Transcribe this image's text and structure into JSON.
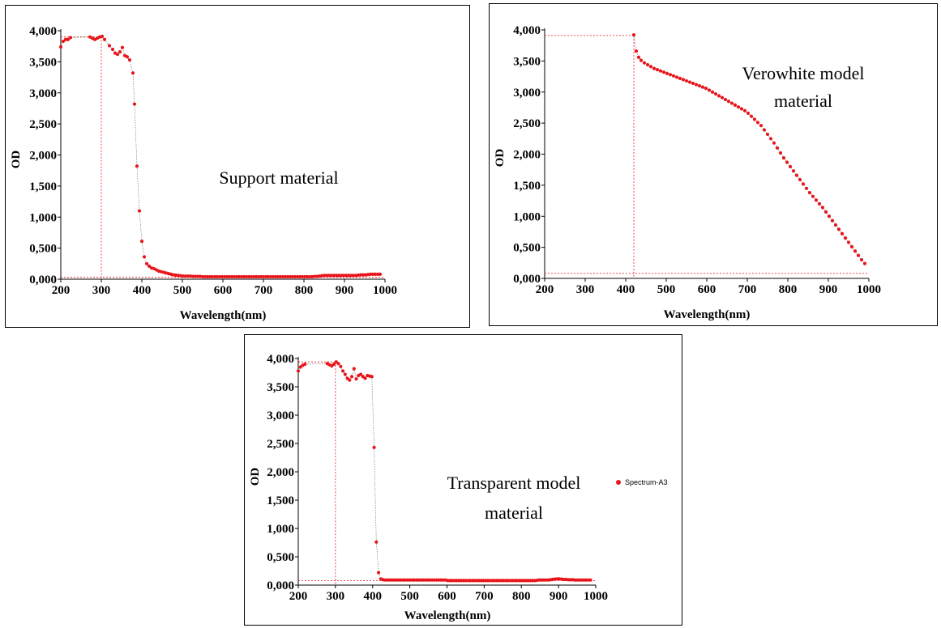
{
  "chart_data": [
    {
      "type": "scatter",
      "xlabel": "Wavelength(nm)",
      "ylabel": "OD",
      "xlim": [
        200,
        1000
      ],
      "ylim": [
        0,
        4000
      ],
      "xticks": [
        "200",
        "300",
        "400",
        "500",
        "600",
        "700",
        "800",
        "900",
        "1000"
      ],
      "yticks": [
        "0,000",
        "0,500",
        "1,000",
        "1,500",
        "2,000",
        "2,500",
        "3,000",
        "3,500",
        "4,000"
      ],
      "annotation": [
        "Support material"
      ],
      "marker_color": "#e8151b",
      "guide_color": "#e8151b",
      "cursor": {
        "x": 300,
        "y": 30
      },
      "top_line": {
        "x_start": 200,
        "x_end": 300,
        "y": 3900
      },
      "series": [
        {
          "x": [
            200,
            206,
            212,
            218,
            224,
            272,
            278,
            284,
            290,
            296,
            302,
            308,
            320,
            328,
            334,
            340,
            346,
            352,
            358,
            364,
            370,
            378,
            382,
            388,
            394,
            400,
            406,
            412,
            418,
            424,
            430,
            436,
            442,
            448,
            454,
            460,
            466,
            472,
            478,
            484,
            490,
            496,
            502,
            508,
            514,
            520,
            526,
            532,
            538,
            544,
            550,
            556,
            562,
            568,
            574,
            580,
            586,
            592,
            598,
            604,
            610,
            616,
            622,
            628,
            634,
            640,
            646,
            652,
            658,
            664,
            670,
            676,
            682,
            688,
            694,
            700,
            706,
            712,
            718,
            724,
            730,
            736,
            742,
            748,
            754,
            760,
            766,
            772,
            778,
            784,
            790,
            796,
            802,
            808,
            814,
            820,
            826,
            832,
            838,
            844,
            850,
            856,
            862,
            868,
            874,
            880,
            886,
            892,
            898,
            904,
            910,
            916,
            922,
            928,
            934,
            940,
            946,
            952,
            958,
            964,
            970,
            976,
            982,
            988
          ],
          "y": [
            3740,
            3830,
            3860,
            3860,
            3890,
            3900,
            3880,
            3860,
            3880,
            3900,
            3910,
            3860,
            3760,
            3700,
            3640,
            3620,
            3660,
            3730,
            3600,
            3580,
            3530,
            3320,
            2820,
            1820,
            1100,
            610,
            360,
            250,
            210,
            180,
            170,
            150,
            130,
            120,
            110,
            100,
            90,
            80,
            70,
            65,
            60,
            55,
            50,
            50,
            50,
            50,
            45,
            45,
            45,
            45,
            40,
            40,
            40,
            40,
            40,
            40,
            40,
            40,
            40,
            40,
            40,
            40,
            40,
            40,
            40,
            40,
            40,
            40,
            40,
            40,
            40,
            40,
            40,
            40,
            40,
            40,
            40,
            40,
            40,
            40,
            40,
            40,
            40,
            40,
            40,
            40,
            40,
            40,
            40,
            40,
            40,
            40,
            40,
            40,
            40,
            40,
            45,
            45,
            50,
            55,
            60,
            60,
            60,
            60,
            60,
            60,
            60,
            60,
            60,
            60,
            60,
            60,
            60,
            60,
            65,
            70,
            70,
            70,
            75,
            80,
            80,
            80,
            80,
            80
          ],
          "note": ""
        }
      ]
    },
    {
      "type": "scatter",
      "xlabel": "Wavelength(nm)",
      "ylabel": "OD",
      "xlim": [
        200,
        1000
      ],
      "ylim": [
        0,
        4000
      ],
      "xticks": [
        "200",
        "300",
        "400",
        "500",
        "600",
        "700",
        "800",
        "900",
        "1000"
      ],
      "yticks": [
        "0,000",
        "0,500",
        "1,000",
        "1,500",
        "2,000",
        "2,500",
        "3,000",
        "3,500",
        "4,000"
      ],
      "annotation": [
        "Verowhite model",
        "material"
      ],
      "marker_color": "#e8151b",
      "guide_color": "#e8151b",
      "cursor": {
        "x": 420,
        "y": 80
      },
      "top_line": {
        "x_start": 200,
        "x_end": 420,
        "y": 3910
      },
      "series": [
        {
          "x": [
            420,
            426,
            432,
            438,
            446,
            454,
            462,
            470,
            478,
            486,
            494,
            502,
            510,
            518,
            526,
            534,
            542,
            550,
            558,
            566,
            574,
            582,
            590,
            598,
            606,
            614,
            622,
            630,
            638,
            646,
            654,
            662,
            670,
            678,
            686,
            694,
            702,
            710,
            718,
            726,
            734,
            742,
            750,
            758,
            766,
            774,
            782,
            790,
            798,
            806,
            814,
            822,
            830,
            838,
            846,
            854,
            862,
            870,
            878,
            886,
            894,
            902,
            910,
            918,
            926,
            934,
            942,
            950,
            958,
            966,
            974,
            982,
            990
          ],
          "y": [
            3920,
            3660,
            3560,
            3510,
            3470,
            3440,
            3410,
            3380,
            3360,
            3340,
            3320,
            3300,
            3280,
            3260,
            3240,
            3220,
            3200,
            3180,
            3160,
            3140,
            3120,
            3100,
            3080,
            3060,
            3030,
            3000,
            2970,
            2940,
            2910,
            2880,
            2850,
            2820,
            2790,
            2760,
            2730,
            2700,
            2660,
            2610,
            2560,
            2510,
            2460,
            2390,
            2320,
            2250,
            2180,
            2100,
            2020,
            1940,
            1870,
            1800,
            1730,
            1660,
            1590,
            1520,
            1450,
            1380,
            1320,
            1260,
            1200,
            1140,
            1070,
            1000,
            930,
            860,
            790,
            720,
            650,
            580,
            510,
            440,
            370,
            300,
            240
          ],
          "note": ""
        }
      ]
    },
    {
      "type": "scatter",
      "xlabel": "Wavelength(nm)",
      "ylabel": "OD",
      "xlim": [
        200,
        1000
      ],
      "ylim": [
        0,
        4000
      ],
      "xticks": [
        "200",
        "300",
        "400",
        "500",
        "600",
        "700",
        "800",
        "900",
        "1000"
      ],
      "yticks": [
        "0,000",
        "0,500",
        "1,000",
        "1,500",
        "2,000",
        "2,500",
        "3,000",
        "3,500",
        "4,000"
      ],
      "annotation": [
        "Transparent model",
        "material"
      ],
      "marker_color": "#e8151b",
      "guide_color": "#e8151b",
      "cursor": {
        "x": 300,
        "y": 80
      },
      "top_line": {
        "x_start": 200,
        "x_end": 300,
        "y": 3940
      },
      "legend": {
        "label": "Spectrum-A3",
        "placement": "right"
      },
      "series": [
        {
          "name": "Spectrum-A3",
          "x": [
            200,
            206,
            212,
            218,
            278,
            284,
            290,
            296,
            302,
            308,
            314,
            320,
            326,
            332,
            338,
            344,
            350,
            356,
            362,
            368,
            374,
            380,
            386,
            392,
            398,
            404,
            410,
            416,
            422,
            428,
            434,
            440,
            446,
            452,
            458,
            464,
            470,
            476,
            482,
            488,
            494,
            500,
            506,
            512,
            518,
            524,
            530,
            536,
            542,
            548,
            554,
            560,
            566,
            572,
            578,
            584,
            590,
            596,
            602,
            608,
            614,
            620,
            626,
            632,
            638,
            644,
            650,
            656,
            662,
            668,
            674,
            680,
            686,
            692,
            698,
            704,
            710,
            716,
            722,
            728,
            734,
            740,
            746,
            752,
            758,
            764,
            770,
            776,
            782,
            788,
            794,
            800,
            806,
            812,
            818,
            824,
            830,
            836,
            842,
            848,
            854,
            860,
            866,
            872,
            878,
            884,
            890,
            896,
            902,
            908,
            914,
            920,
            926,
            932,
            938,
            944,
            950,
            956,
            962,
            968,
            974,
            980,
            986
          ],
          "y": [
            3780,
            3850,
            3880,
            3900,
            3910,
            3890,
            3870,
            3900,
            3940,
            3910,
            3860,
            3780,
            3720,
            3650,
            3620,
            3680,
            3820,
            3640,
            3700,
            3720,
            3680,
            3650,
            3700,
            3690,
            3680,
            2430,
            760,
            220,
            110,
            95,
            90,
            90,
            90,
            90,
            90,
            90,
            90,
            90,
            90,
            90,
            90,
            90,
            90,
            90,
            90,
            90,
            90,
            90,
            90,
            90,
            90,
            90,
            90,
            90,
            90,
            90,
            90,
            90,
            80,
            80,
            80,
            80,
            80,
            80,
            80,
            80,
            80,
            80,
            80,
            80,
            80,
            80,
            80,
            80,
            80,
            80,
            80,
            80,
            80,
            80,
            80,
            80,
            80,
            80,
            80,
            80,
            80,
            80,
            80,
            80,
            80,
            80,
            80,
            80,
            80,
            80,
            80,
            80,
            85,
            90,
            90,
            90,
            90,
            90,
            95,
            100,
            105,
            110,
            110,
            105,
            100,
            100,
            95,
            95,
            95,
            90,
            90,
            90,
            90,
            90,
            90,
            90,
            90
          ],
          "note": ""
        }
      ]
    }
  ]
}
